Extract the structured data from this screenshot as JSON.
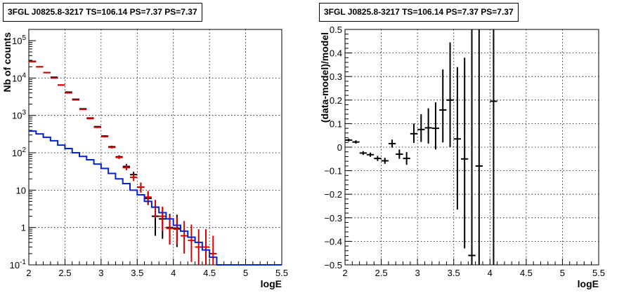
{
  "left_panel": {
    "title": "3FGL J0825.8-3217 TS=106.14 PS=7.37 PS=7.37"
  },
  "right_panel": {
    "title": "3FGL J0825.8-3217 TS=106.14 PS=7.37 PS=7.37"
  },
  "colors": {
    "data_black": "#000000",
    "data_red": "#dd0000",
    "model_blue": "#0022dd",
    "grid": "#000000"
  },
  "chart_data": [
    {
      "type": "scatter",
      "title": "3FGL J0825.8-3217 TS=106.14 PS=7.37 PS=7.37",
      "xlabel": "logE",
      "ylabel": "Nb of counts",
      "xlim": [
        2,
        5.5
      ],
      "ylim": [
        0.1,
        200000
      ],
      "yscale": "log",
      "grid": true,
      "x_ticks": [
        2,
        2.5,
        3,
        3.5,
        4,
        4.5,
        5,
        5.5
      ],
      "x_tick_labels": [
        "2",
        "2.5",
        "3",
        "3.5",
        "4",
        "4.5",
        "5",
        "5.5"
      ],
      "y_ticks": [
        0.1,
        1,
        10,
        100,
        1000,
        10000,
        100000
      ],
      "y_tick_labels": [
        "10⁻¹",
        "1",
        "10",
        "10²",
        "10³",
        "10⁴",
        "10⁵"
      ],
      "series": [
        {
          "style": "errorbar",
          "color": "#000000",
          "points": [
            {
              "x": 2.05,
              "y": 28000,
              "lo": 27800,
              "hi": 28200
            },
            {
              "x": 2.15,
              "y": 20000,
              "lo": 19800,
              "hi": 20200
            },
            {
              "x": 2.25,
              "y": 14000,
              "lo": 13800,
              "hi": 14200
            },
            {
              "x": 2.35,
              "y": 10500,
              "lo": 10300,
              "hi": 10700
            },
            {
              "x": 2.45,
              "y": 6500,
              "lo": 6350,
              "hi": 6650
            },
            {
              "x": 2.55,
              "y": 4200,
              "lo": 4100,
              "hi": 4300
            },
            {
              "x": 2.65,
              "y": 2700,
              "lo": 2630,
              "hi": 2770
            },
            {
              "x": 2.75,
              "y": 1500,
              "lo": 1450,
              "hi": 1550
            },
            {
              "x": 2.85,
              "y": 850,
              "lo": 820,
              "hi": 880
            },
            {
              "x": 2.95,
              "y": 500,
              "lo": 480,
              "hi": 520
            },
            {
              "x": 3.05,
              "y": 280,
              "lo": 265,
              "hi": 295
            },
            {
              "x": 3.15,
              "y": 145,
              "lo": 135,
              "hi": 155
            },
            {
              "x": 3.25,
              "y": 78,
              "lo": 70,
              "hi": 86
            },
            {
              "x": 3.35,
              "y": 43,
              "lo": 37,
              "hi": 50
            },
            {
              "x": 3.45,
              "y": 26,
              "lo": 21,
              "hi": 31
            },
            {
              "x": 3.55,
              "y": 12,
              "lo": 9,
              "hi": 16
            },
            {
              "x": 3.65,
              "y": 6,
              "lo": 4,
              "hi": 9
            },
            {
              "x": 3.75,
              "y": 2,
              "lo": 0.6,
              "hi": 4
            },
            {
              "x": 3.85,
              "y": 1.7,
              "lo": 0.5,
              "hi": 3.5
            },
            {
              "x": 3.95,
              "y": 1,
              "lo": 0.35,
              "hi": 2.3
            },
            {
              "x": 4.05,
              "y": 0.95,
              "lo": 0.3,
              "hi": 2.2
            }
          ]
        },
        {
          "style": "errorbar",
          "color": "#dd0000",
          "points": [
            {
              "x": 2.05,
              "y": 27500,
              "lo": 27300,
              "hi": 27700
            },
            {
              "x": 2.15,
              "y": 20000,
              "lo": 19800,
              "hi": 20200
            },
            {
              "x": 2.25,
              "y": 14000,
              "lo": 13800,
              "hi": 14200
            },
            {
              "x": 2.35,
              "y": 10000,
              "lo": 9800,
              "hi": 10200
            },
            {
              "x": 2.45,
              "y": 6500,
              "lo": 6350,
              "hi": 6650
            },
            {
              "x": 2.55,
              "y": 4000,
              "lo": 3900,
              "hi": 4100
            },
            {
              "x": 2.65,
              "y": 2600,
              "lo": 2530,
              "hi": 2670
            },
            {
              "x": 2.75,
              "y": 1450,
              "lo": 1400,
              "hi": 1500
            },
            {
              "x": 2.85,
              "y": 820,
              "lo": 790,
              "hi": 850
            },
            {
              "x": 2.95,
              "y": 480,
              "lo": 460,
              "hi": 500
            },
            {
              "x": 3.05,
              "y": 270,
              "lo": 255,
              "hi": 285
            },
            {
              "x": 3.15,
              "y": 140,
              "lo": 130,
              "hi": 150
            },
            {
              "x": 3.25,
              "y": 75,
              "lo": 68,
              "hi": 83
            },
            {
              "x": 3.35,
              "y": 40,
              "lo": 34,
              "hi": 47
            },
            {
              "x": 3.45,
              "y": 22,
              "lo": 17.5,
              "hi": 27
            },
            {
              "x": 3.55,
              "y": 12,
              "lo": 8.5,
              "hi": 16
            },
            {
              "x": 3.65,
              "y": 6.5,
              "lo": 4.2,
              "hi": 9.5
            },
            {
              "x": 3.75,
              "y": 3.5,
              "lo": 1.8,
              "hi": 5.5
            },
            {
              "x": 3.85,
              "y": 2,
              "lo": 0.8,
              "hi": 3.6
            },
            {
              "x": 3.95,
              "y": 0.95,
              "lo": 0.35,
              "hi": 2.1
            },
            {
              "x": 4.05,
              "y": 0.9,
              "lo": 0.35,
              "hi": 1.9
            },
            {
              "x": 4.15,
              "y": 0.6,
              "lo": 0.2,
              "hi": 1.5
            },
            {
              "x": 4.25,
              "y": 0.45,
              "lo": 0.12,
              "hi": 1.2
            },
            {
              "x": 4.35,
              "y": 0.3,
              "lo": 0.1,
              "hi": 0.9
            },
            {
              "x": 4.45,
              "y": 0.3,
              "lo": 0.1,
              "hi": 0.9
            },
            {
              "x": 4.55,
              "y": 0.2,
              "lo": 0.1,
              "hi": 0.6
            }
          ]
        },
        {
          "style": "step",
          "color": "#0022dd",
          "bins": [
            2.0,
            2.1,
            2.2,
            2.3,
            2.4,
            2.5,
            2.6,
            2.7,
            2.8,
            2.9,
            3.0,
            3.1,
            3.2,
            3.3,
            3.4,
            3.5,
            3.6,
            3.7,
            3.8,
            3.9,
            4.0,
            4.1,
            4.2,
            4.3,
            4.4,
            4.5,
            4.6,
            4.7,
            5.5
          ],
          "values": [
            380,
            320,
            260,
            210,
            160,
            130,
            100,
            80,
            65,
            50,
            38,
            28,
            20,
            15,
            10,
            7.5,
            5,
            3.5,
            2.5,
            1.7,
            1.15,
            0.8,
            0.55,
            0.4,
            0.25,
            0.16,
            0.1,
            0.1
          ]
        }
      ]
    },
    {
      "type": "scatter",
      "title": "3FGL J0825.8-3217 TS=106.14 PS=7.37 PS=7.37",
      "xlabel": "logE",
      "ylabel": "(data-model)/model",
      "xlim": [
        2,
        5.5
      ],
      "ylim": [
        -0.5,
        0.5
      ],
      "grid": true,
      "x_ticks": [
        2,
        2.5,
        3,
        3.5,
        4,
        4.5,
        5,
        5.5
      ],
      "x_tick_labels": [
        "2",
        "2.5",
        "3",
        "3.5",
        "4",
        "4.5",
        "5",
        "5.5"
      ],
      "y_ticks": [
        -0.5,
        -0.4,
        -0.3,
        -0.2,
        -0.1,
        0,
        0.1,
        0.2,
        0.3,
        0.4,
        0.5
      ],
      "y_tick_labels": [
        "−0.5",
        "−0.4",
        "−0.3",
        "−0.2",
        "−0.1",
        "0",
        "0.1",
        "0.2",
        "0.3",
        "0.4",
        "0.5"
      ],
      "series": [
        {
          "style": "errorbar",
          "color": "#000000",
          "points": [
            {
              "x": 2.05,
              "y": 0.03,
              "lo": 0.024,
              "hi": 0.036
            },
            {
              "x": 2.15,
              "y": 0.022,
              "lo": 0.015,
              "hi": 0.029
            },
            {
              "x": 2.25,
              "y": -0.025,
              "lo": -0.033,
              "hi": -0.017
            },
            {
              "x": 2.35,
              "y": -0.032,
              "lo": -0.041,
              "hi": -0.023
            },
            {
              "x": 2.45,
              "y": -0.048,
              "lo": -0.059,
              "hi": -0.037
            },
            {
              "x": 2.55,
              "y": -0.058,
              "lo": -0.071,
              "hi": -0.045
            },
            {
              "x": 2.65,
              "y": 0.015,
              "lo": -0.002,
              "hi": 0.032
            },
            {
              "x": 2.75,
              "y": -0.03,
              "lo": -0.05,
              "hi": -0.01
            },
            {
              "x": 2.85,
              "y": -0.048,
              "lo": -0.075,
              "hi": -0.021
            },
            {
              "x": 2.95,
              "y": 0.057,
              "lo": 0.018,
              "hi": 0.1
            },
            {
              "x": 3.05,
              "y": 0.075,
              "lo": 0.022,
              "hi": 0.14
            },
            {
              "x": 3.15,
              "y": 0.082,
              "lo": 0.015,
              "hi": 0.165
            },
            {
              "x": 3.25,
              "y": 0.08,
              "lo": -0.01,
              "hi": 0.19
            },
            {
              "x": 3.35,
              "y": 0.158,
              "lo": 0.02,
              "hi": 0.33
            },
            {
              "x": 3.45,
              "y": 0.2,
              "lo": 0.0,
              "hi": 0.445
            },
            {
              "x": 3.55,
              "y": 0.035,
              "lo": -0.265,
              "hi": 0.34
            },
            {
              "x": 3.65,
              "y": -0.05,
              "lo": -0.43,
              "hi": 0.38
            },
            {
              "x": 3.75,
              "y": -0.46,
              "lo": -0.5,
              "hi": 0.5
            },
            {
              "x": 3.85,
              "y": -0.08,
              "lo": -0.5,
              "hi": 0.5
            },
            {
              "x": 4.05,
              "y": 0.195,
              "lo": -0.5,
              "hi": 0.5
            }
          ]
        }
      ]
    }
  ]
}
